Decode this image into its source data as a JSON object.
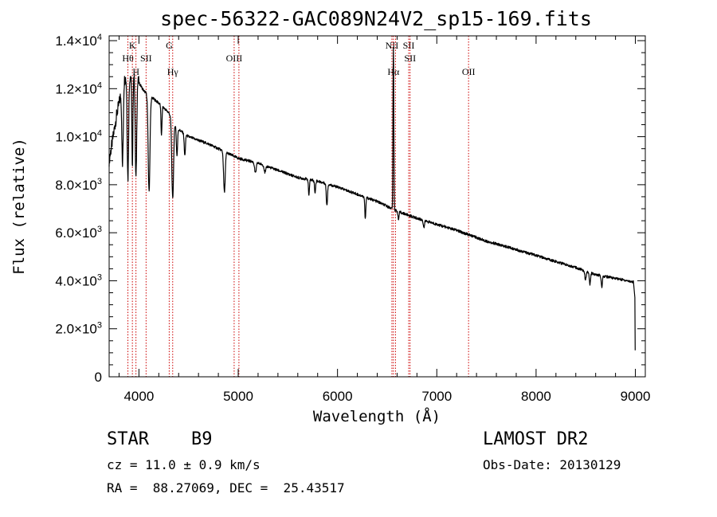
{
  "chart_data": {
    "type": "line",
    "title": "spec-56322-GAC089N24V2_sp15-169.fits",
    "xlabel": "Wavelength (Å)",
    "ylabel": "Flux (relative)",
    "xlim": [
      3700,
      9100
    ],
    "ylim": [
      0,
      14200
    ],
    "x_ticks": [
      {
        "value": 4000,
        "label": "4000"
      },
      {
        "value": 5000,
        "label": "5000"
      },
      {
        "value": 6000,
        "label": "6000"
      },
      {
        "value": 7000,
        "label": "7000"
      },
      {
        "value": 8000,
        "label": "8000"
      },
      {
        "value": 9000,
        "label": "9000"
      }
    ],
    "y_ticks": [
      {
        "value": 0,
        "mantissa": "0",
        "exponent": ""
      },
      {
        "value": 2000,
        "mantissa": "2.0×10",
        "exponent": "3"
      },
      {
        "value": 4000,
        "mantissa": "4.0×10",
        "exponent": "3"
      },
      {
        "value": 6000,
        "mantissa": "6.0×10",
        "exponent": "3"
      },
      {
        "value": 8000,
        "mantissa": "8.0×10",
        "exponent": "3"
      },
      {
        "value": 10000,
        "mantissa": "1.0×10",
        "exponent": "4"
      },
      {
        "value": 12000,
        "mantissa": "1.2×10",
        "exponent": "4"
      },
      {
        "value": 14000,
        "mantissa": "1.4×10",
        "exponent": "4"
      }
    ],
    "continuum": [
      [
        3700,
        9000
      ],
      [
        3780,
        11000
      ],
      [
        3850,
        12400
      ],
      [
        3950,
        12600
      ],
      [
        4050,
        11900
      ],
      [
        4200,
        11400
      ],
      [
        4300,
        11000
      ],
      [
        4400,
        10300
      ],
      [
        4500,
        10000
      ],
      [
        4700,
        9700
      ],
      [
        4900,
        9300
      ],
      [
        5000,
        9100
      ],
      [
        5200,
        8900
      ],
      [
        5400,
        8600
      ],
      [
        5600,
        8300
      ],
      [
        5800,
        8150
      ],
      [
        6000,
        7900
      ],
      [
        6200,
        7600
      ],
      [
        6400,
        7300
      ],
      [
        6600,
        6900
      ],
      [
        6800,
        6600
      ],
      [
        7000,
        6350
      ],
      [
        7200,
        6100
      ],
      [
        7500,
        5650
      ],
      [
        7800,
        5300
      ],
      [
        8000,
        5050
      ],
      [
        8200,
        4800
      ],
      [
        8400,
        4550
      ],
      [
        8600,
        4250
      ],
      [
        8800,
        4100
      ],
      [
        8980,
        3950
      ]
    ],
    "absorption_features": [
      {
        "center": 3835,
        "depth": 3300,
        "width": 7
      },
      {
        "center": 3889,
        "depth": 4200,
        "width": 7
      },
      {
        "center": 3934,
        "depth": 4000,
        "width": 5
      },
      {
        "center": 3970,
        "depth": 4200,
        "width": 7
      },
      {
        "center": 4102,
        "depth": 4000,
        "width": 9
      },
      {
        "center": 4227,
        "depth": 1200,
        "width": 5
      },
      {
        "center": 4340,
        "depth": 3300,
        "width": 9
      },
      {
        "center": 4383,
        "depth": 1200,
        "width": 6
      },
      {
        "center": 4462,
        "depth": 900,
        "width": 6
      },
      {
        "center": 4861,
        "depth": 1700,
        "width": 8
      },
      {
        "center": 5173,
        "depth": 450,
        "width": 8
      },
      {
        "center": 5270,
        "depth": 300,
        "width": 8
      },
      {
        "center": 5712,
        "depth": 650,
        "width": 5
      },
      {
        "center": 5774,
        "depth": 550,
        "width": 5
      },
      {
        "center": 5893,
        "depth": 900,
        "width": 6
      },
      {
        "center": 6280,
        "depth": 900,
        "width": 5
      },
      {
        "center": 6614,
        "depth": 350,
        "width": 5
      },
      {
        "center": 6870,
        "depth": 300,
        "width": 6
      },
      {
        "center": 8498,
        "depth": 400,
        "width": 6
      },
      {
        "center": 8542,
        "depth": 500,
        "width": 6
      },
      {
        "center": 8662,
        "depth": 450,
        "width": 6
      }
    ],
    "emission_features": [
      {
        "center": 6563,
        "height": 6800,
        "width": 4
      }
    ],
    "line_markers": [
      {
        "wavelength": 3889,
        "label": "Hθ",
        "row": 1
      },
      {
        "wavelength": 3934,
        "label": "K",
        "row": 0
      },
      {
        "wavelength": 3970,
        "label": "H",
        "row": 2
      },
      {
        "wavelength": 4072,
        "label": "SII",
        "row": 1
      },
      {
        "wavelength": 4305,
        "label": "G",
        "row": 0
      },
      {
        "wavelength": 4340,
        "label": "Hγ",
        "row": 2
      },
      {
        "wavelength": 4959,
        "label": "OIII",
        "row": 1
      },
      {
        "wavelength": 5007,
        "label": "",
        "row": 1
      },
      {
        "wavelength": 6548,
        "label": "NII",
        "row": 0
      },
      {
        "wavelength": 6563,
        "label": "Hα",
        "row": 2
      },
      {
        "wavelength": 6584,
        "label": "",
        "row": 0
      },
      {
        "wavelength": 6717,
        "label": "SII",
        "row": 0
      },
      {
        "wavelength": 6731,
        "label": "SII",
        "row": 1
      },
      {
        "wavelength": 7320,
        "label": "OII",
        "row": 2
      }
    ],
    "grid": false,
    "line_color": "#000000",
    "marker_color": "#cc0000"
  },
  "info": {
    "class_label": "STAR",
    "subclass": "B9",
    "survey": "LAMOST DR2",
    "cz_text": "cz = 11.0 ± 0.9 km/s",
    "obs_date_text": "Obs-Date: 20130129",
    "coords_text": "RA =  88.27069, DEC =  25.43517"
  }
}
